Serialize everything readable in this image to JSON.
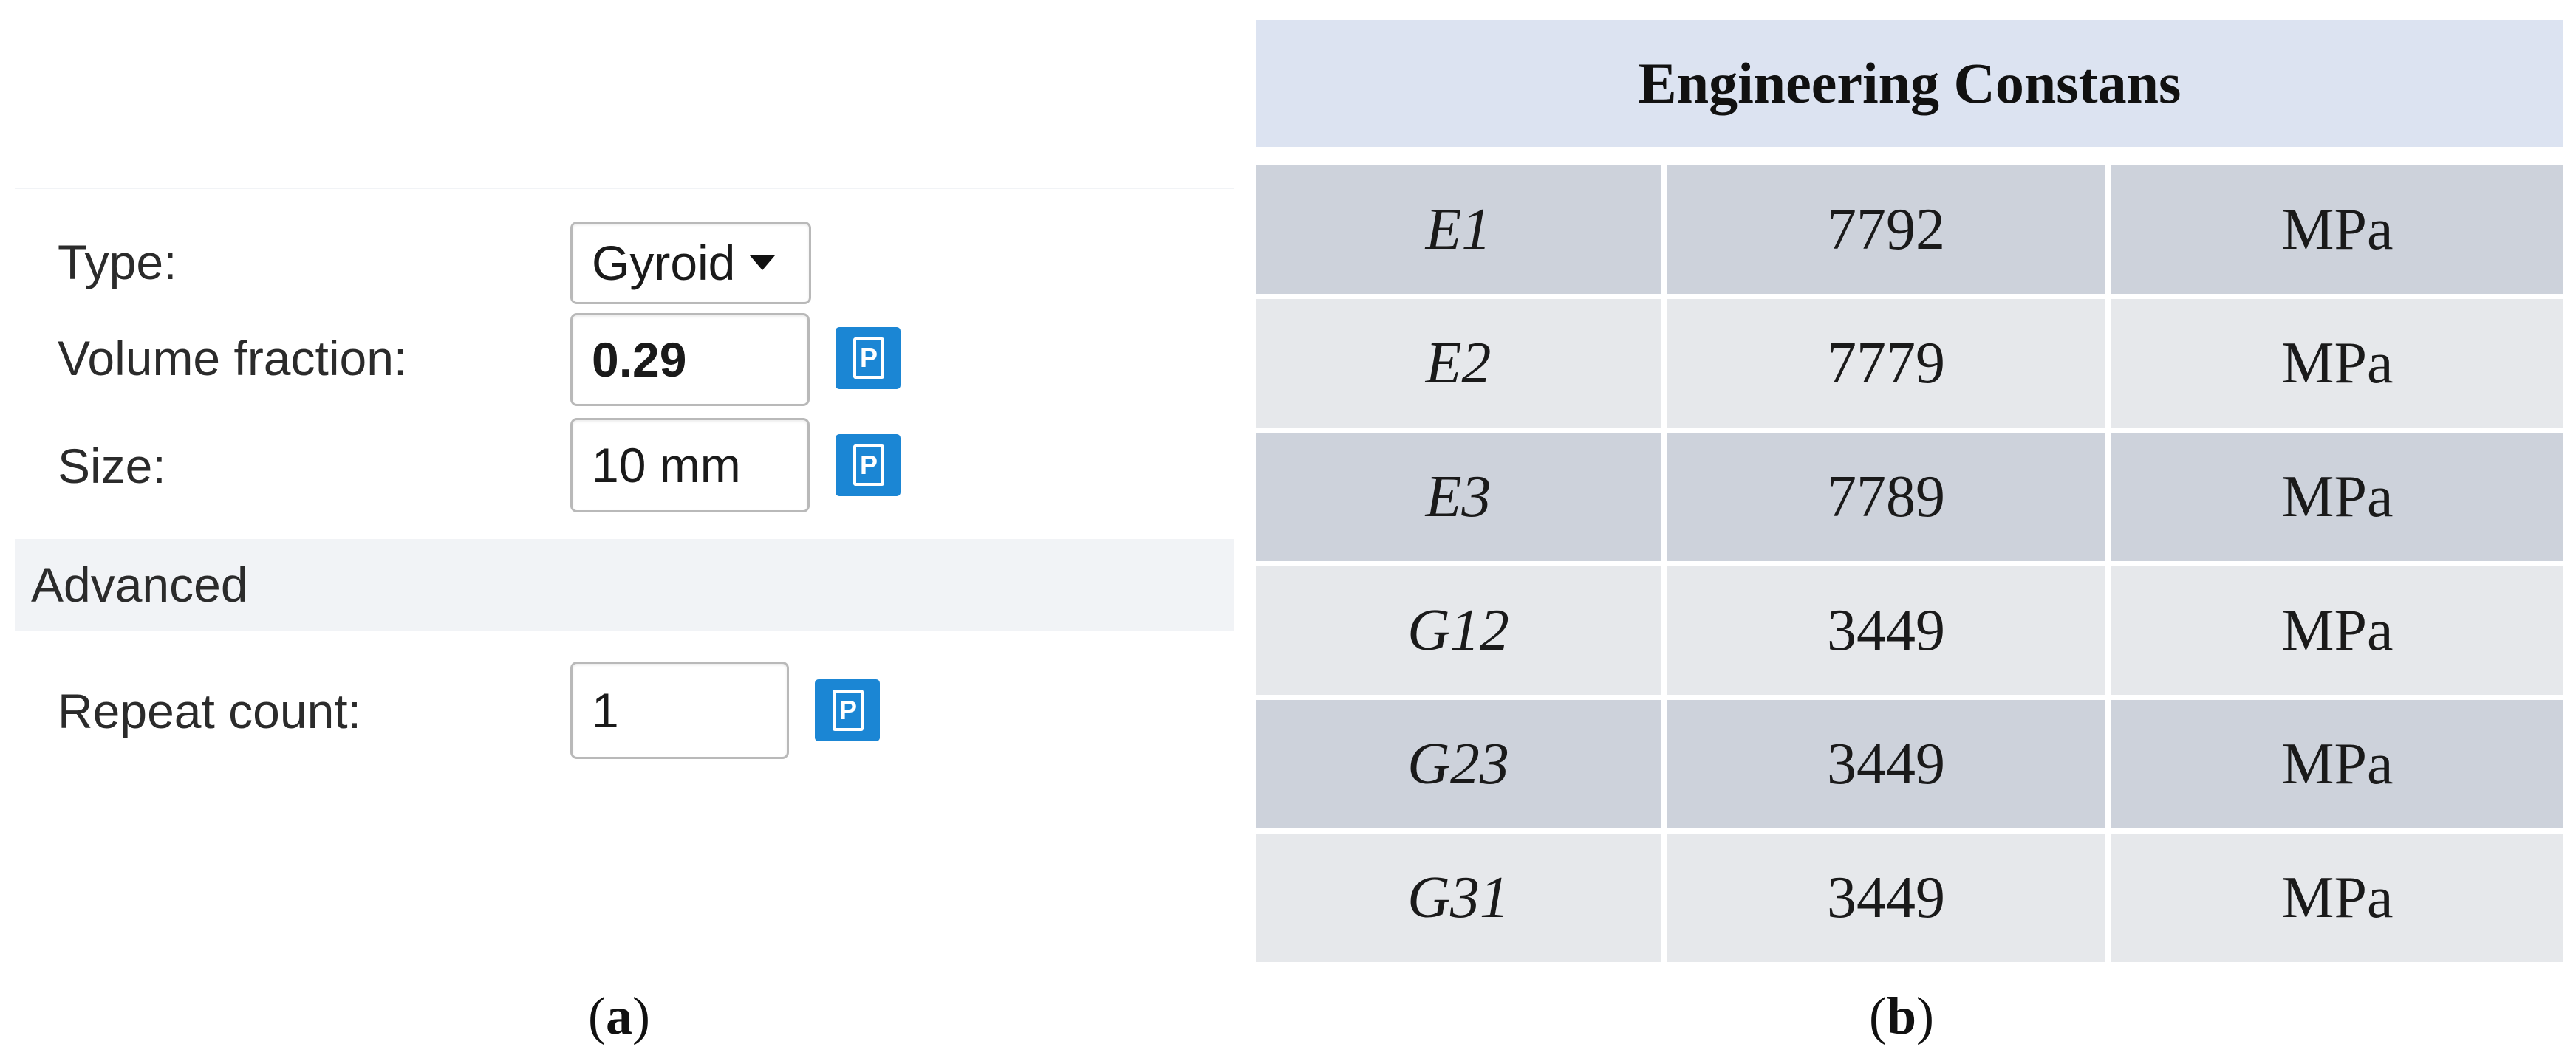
{
  "panel_a": {
    "type": {
      "label": "Type:",
      "value": "Gyroid"
    },
    "volume_fraction": {
      "label": "Volume fraction:",
      "value": "0.29"
    },
    "size": {
      "label": "Size:",
      "value": "10 mm"
    },
    "advanced_section": "Advanced",
    "repeat_count": {
      "label": "Repeat count:",
      "value": "1"
    },
    "param_icon_glyph": "P",
    "caption_open": "(",
    "caption_letter": "a",
    "caption_close": ")"
  },
  "panel_b": {
    "title": "Engineering Constans",
    "rows": [
      {
        "name": "E1",
        "value": "7792",
        "unit": "MPa"
      },
      {
        "name": "E2",
        "value": "7779",
        "unit": "MPa"
      },
      {
        "name": "E3",
        "value": "7789",
        "unit": "MPa"
      },
      {
        "name": "G12",
        "value": "3449",
        "unit": "MPa"
      },
      {
        "name": "G23",
        "value": "3449",
        "unit": "MPa"
      },
      {
        "name": "G31",
        "value": "3449",
        "unit": "MPa"
      }
    ],
    "caption_open": "(",
    "caption_letter": "b",
    "caption_close": ")"
  },
  "colors": {
    "icon_blue": "#1b86d4",
    "title_band": "#dce3f1",
    "row_dark": "#cdd2db",
    "row_light": "#e6e8eb",
    "section_band": "#f1f3f6"
  },
  "icons": {
    "parameter": "parameter-icon",
    "dropdown": "chevron-down-icon"
  }
}
